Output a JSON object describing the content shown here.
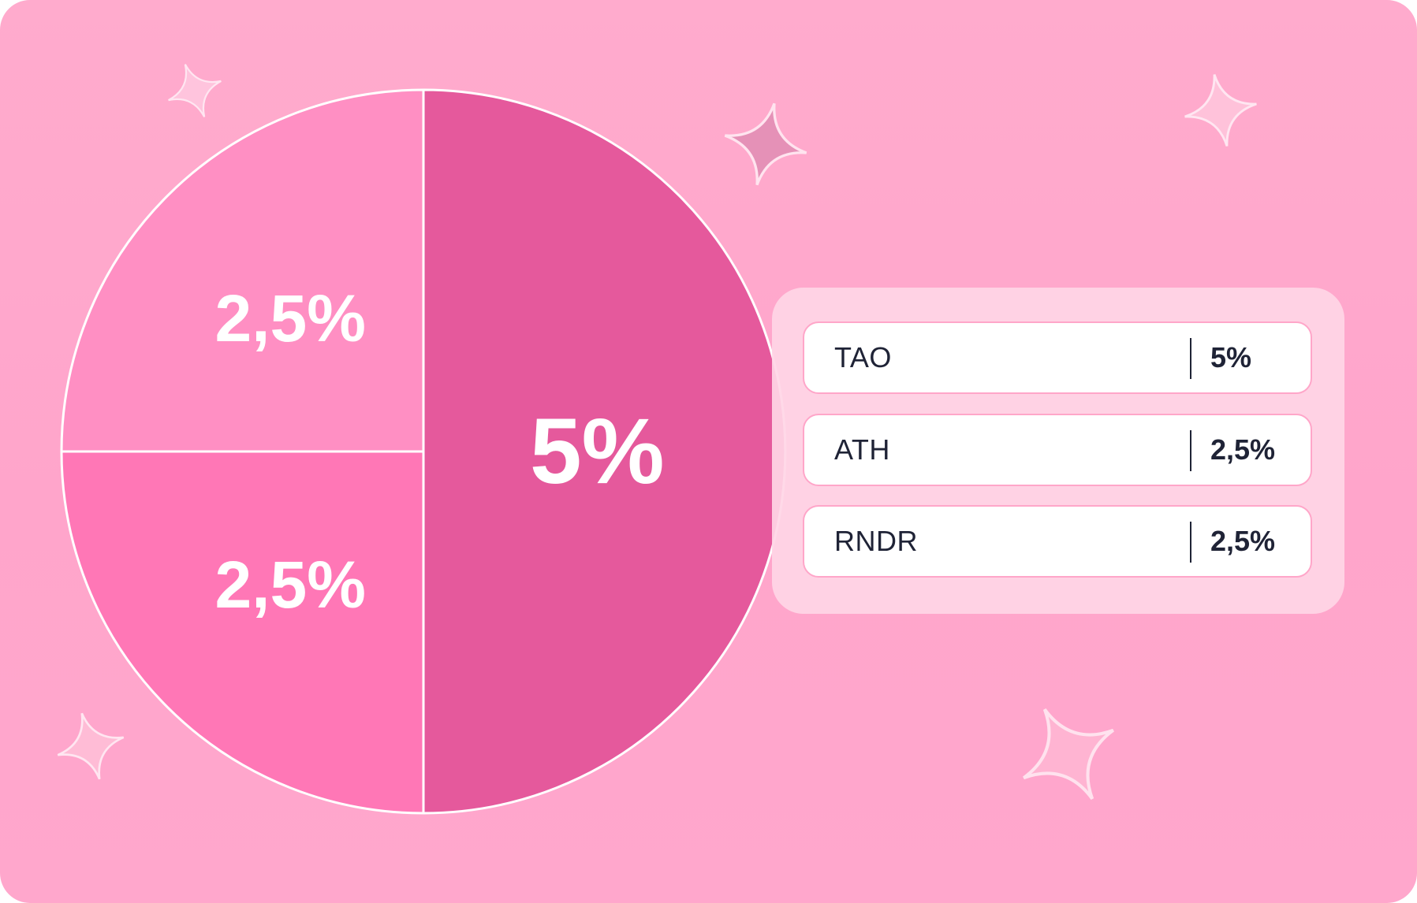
{
  "chart_data": {
    "type": "pie",
    "slices": [
      {
        "label": "TAO",
        "value": 5,
        "display": "5%",
        "color": "#e5599c"
      },
      {
        "label": "ATH",
        "value": 2.5,
        "display": "2,5%",
        "color": "#ff77b6"
      },
      {
        "label": "RNDR",
        "value": 2.5,
        "display": "2,5%",
        "color": "#ff8fc3"
      }
    ],
    "legend": "right",
    "slice_border_color": "#ffffff"
  },
  "legend": {
    "items": [
      {
        "name": "TAO",
        "value": "5%"
      },
      {
        "name": "ATH",
        "value": "2,5%"
      },
      {
        "name": "RNDR",
        "value": "2,5%"
      }
    ]
  },
  "decorations": {
    "icon": "sparkle-star-icon",
    "count": 5
  }
}
